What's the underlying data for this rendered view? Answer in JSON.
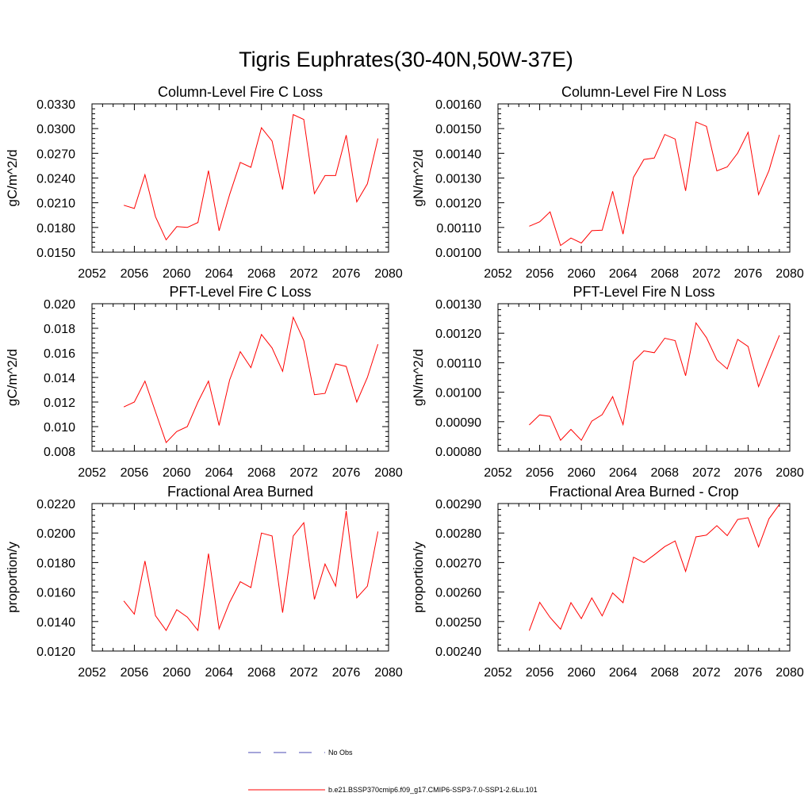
{
  "suptitle": "Tigris Euphrates(30-40N,50W-37E)",
  "legend": {
    "entries": [
      {
        "label": "No Obs",
        "color": "#4b4bb4",
        "style": "dashed"
      },
      {
        "label": "b.e21.BSSP370cmip6.f09_g17.CMIP6-SSP3-7.0-SSP1-2.6Lu.101",
        "color": "#ff0000",
        "style": "solid"
      }
    ]
  },
  "chart_data": [
    {
      "type": "line",
      "title": "Column-Level Fire C Loss",
      "ylabel": "gC/m^2/d",
      "xlim": [
        2052,
        2080
      ],
      "ylim": [
        0.015,
        0.033
      ],
      "xticks": [
        "2052",
        "2056",
        "2060",
        "2064",
        "2068",
        "2072",
        "2076",
        "2080"
      ],
      "yticks": [
        "0.0150",
        "0.0180",
        "0.0210",
        "0.0240",
        "0.0270",
        "0.0300",
        "0.0330"
      ],
      "color": "#ff0000",
      "x": [
        2055,
        2056,
        2057,
        2058,
        2059,
        2060,
        2061,
        2062,
        2063,
        2064,
        2065,
        2066,
        2067,
        2068,
        2069,
        2070,
        2071,
        2072,
        2073,
        2074,
        2075,
        2076,
        2077,
        2078,
        2079
      ],
      "y": [
        0.0207,
        0.0203,
        0.0244,
        0.0193,
        0.0165,
        0.0181,
        0.018,
        0.0186,
        0.0249,
        0.0176,
        0.022,
        0.0259,
        0.0253,
        0.0301,
        0.0285,
        0.0226,
        0.0317,
        0.0311,
        0.0221,
        0.0243,
        0.0243,
        0.0292,
        0.0211,
        0.0233,
        0.0288
      ]
    },
    {
      "type": "line",
      "title": "Column-Level Fire N Loss",
      "ylabel": "gN/m^2/d",
      "xlim": [
        2052,
        2080
      ],
      "ylim": [
        0.001,
        0.0016
      ],
      "xticks": [
        "2052",
        "2056",
        "2060",
        "2064",
        "2068",
        "2072",
        "2076",
        "2080"
      ],
      "yticks": [
        "0.00100",
        "0.00110",
        "0.00120",
        "0.00130",
        "0.00140",
        "0.00150",
        "0.00160"
      ],
      "color": "#ff0000",
      "x": [
        2055,
        2056,
        2057,
        2058,
        2059,
        2060,
        2061,
        2062,
        2063,
        2064,
        2065,
        2066,
        2067,
        2068,
        2069,
        2070,
        2071,
        2072,
        2073,
        2074,
        2075,
        2076,
        2077,
        2078,
        2079
      ],
      "y": [
        0.001105,
        0.001123,
        0.001163,
        0.001027,
        0.001057,
        0.001037,
        0.001087,
        0.001089,
        0.001246,
        0.001073,
        0.001303,
        0.001375,
        0.001381,
        0.001476,
        0.001458,
        0.001248,
        0.001527,
        0.001509,
        0.001329,
        0.001345,
        0.001401,
        0.001485,
        0.001233,
        0.00133,
        0.001475
      ]
    },
    {
      "type": "line",
      "title": "PFT-Level Fire C Loss",
      "ylabel": "gC/m^2/d",
      "xlim": [
        2052,
        2080
      ],
      "ylim": [
        0.008,
        0.02
      ],
      "xticks": [
        "2052",
        "2056",
        "2060",
        "2064",
        "2068",
        "2072",
        "2076",
        "2080"
      ],
      "yticks": [
        "0.008",
        "0.010",
        "0.012",
        "0.014",
        "0.016",
        "0.018",
        "0.020"
      ],
      "color": "#ff0000",
      "x": [
        2055,
        2056,
        2057,
        2058,
        2059,
        2060,
        2061,
        2062,
        2063,
        2064,
        2065,
        2066,
        2067,
        2068,
        2069,
        2070,
        2071,
        2072,
        2073,
        2074,
        2075,
        2076,
        2077,
        2078,
        2079
      ],
      "y": [
        0.0116,
        0.012,
        0.0137,
        0.0112,
        0.0087,
        0.0096,
        0.01,
        0.012,
        0.0137,
        0.0101,
        0.0138,
        0.0161,
        0.0148,
        0.0175,
        0.0164,
        0.0145,
        0.0189,
        0.017,
        0.0126,
        0.0127,
        0.0151,
        0.0149,
        0.012,
        0.014,
        0.0167
      ]
    },
    {
      "type": "line",
      "title": "PFT-Level Fire N Loss",
      "ylabel": "gN/m^2/d",
      "xlim": [
        2052,
        2080
      ],
      "ylim": [
        0.0008,
        0.0013
      ],
      "xticks": [
        "2052",
        "2056",
        "2060",
        "2064",
        "2068",
        "2072",
        "2076",
        "2080"
      ],
      "yticks": [
        "0.00080",
        "0.00090",
        "0.00100",
        "0.00110",
        "0.00120",
        "0.00130"
      ],
      "color": "#ff0000",
      "x": [
        2055,
        2056,
        2057,
        2058,
        2059,
        2060,
        2061,
        2062,
        2063,
        2064,
        2065,
        2066,
        2067,
        2068,
        2069,
        2070,
        2071,
        2072,
        2073,
        2074,
        2075,
        2076,
        2077,
        2078,
        2079
      ],
      "y": [
        0.000889,
        0.000923,
        0.000918,
        0.000837,
        0.000874,
        0.000837,
        0.000902,
        0.000924,
        0.000985,
        0.00089,
        0.001104,
        0.00114,
        0.001134,
        0.001183,
        0.001175,
        0.001056,
        0.001235,
        0.001185,
        0.00111,
        0.001079,
        0.001179,
        0.001155,
        0.001019,
        0.001107,
        0.001193
      ]
    },
    {
      "type": "line",
      "title": "Fractional Area Burned",
      "ylabel": "proportion/y",
      "xlim": [
        2052,
        2080
      ],
      "ylim": [
        0.012,
        0.022
      ],
      "xticks": [
        "2052",
        "2056",
        "2060",
        "2064",
        "2068",
        "2072",
        "2076",
        "2080"
      ],
      "yticks": [
        "0.0120",
        "0.0140",
        "0.0160",
        "0.0180",
        "0.0200",
        "0.0220"
      ],
      "color": "#ff0000",
      "x": [
        2055,
        2056,
        2057,
        2058,
        2059,
        2060,
        2061,
        2062,
        2063,
        2064,
        2065,
        2066,
        2067,
        2068,
        2069,
        2070,
        2071,
        2072,
        2073,
        2074,
        2075,
        2076,
        2077,
        2078,
        2079
      ],
      "y": [
        0.0154,
        0.0145,
        0.0181,
        0.0144,
        0.0134,
        0.0148,
        0.0143,
        0.0134,
        0.0186,
        0.0135,
        0.0153,
        0.0167,
        0.0163,
        0.02,
        0.0198,
        0.0146,
        0.0198,
        0.0207,
        0.0155,
        0.0179,
        0.0164,
        0.0215,
        0.0156,
        0.0164,
        0.0201
      ]
    },
    {
      "type": "line",
      "title": "Fractional Area Burned - Crop",
      "ylabel": "proportion/y",
      "xlim": [
        2052,
        2080
      ],
      "ylim": [
        0.0024,
        0.0029
      ],
      "xticks": [
        "2052",
        "2056",
        "2060",
        "2064",
        "2068",
        "2072",
        "2076",
        "2080"
      ],
      "yticks": [
        "0.00240",
        "0.00250",
        "0.00260",
        "0.00270",
        "0.00280",
        "0.00290"
      ],
      "color": "#ff0000",
      "x": [
        2055,
        2056,
        2057,
        2058,
        2059,
        2060,
        2061,
        2062,
        2063,
        2064,
        2065,
        2066,
        2067,
        2068,
        2069,
        2070,
        2071,
        2072,
        2073,
        2074,
        2075,
        2076,
        2077,
        2078,
        2079
      ],
      "y": [
        0.002469,
        0.002565,
        0.002514,
        0.002474,
        0.002564,
        0.00251,
        0.00258,
        0.002519,
        0.002597,
        0.002564,
        0.002718,
        0.0027,
        0.002726,
        0.002754,
        0.002773,
        0.00267,
        0.002787,
        0.002793,
        0.002825,
        0.002791,
        0.002846,
        0.002852,
        0.002753,
        0.002848,
        0.002897
      ]
    }
  ]
}
